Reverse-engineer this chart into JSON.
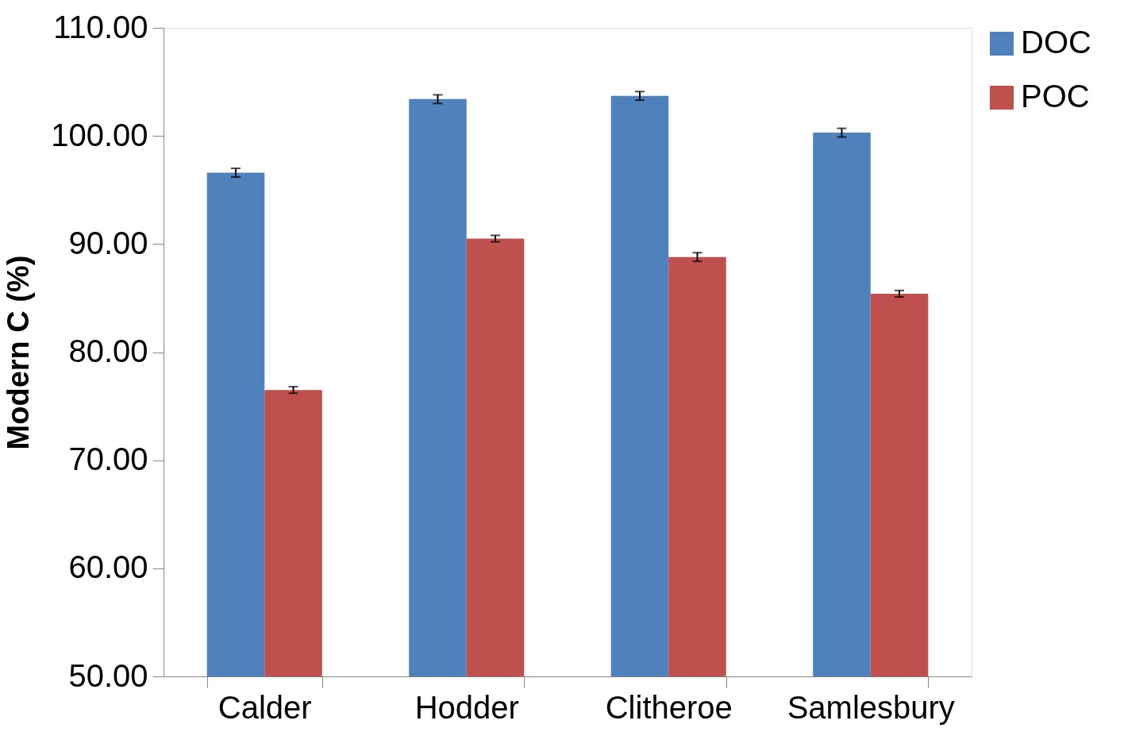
{
  "chart_data": {
    "type": "bar",
    "ylabel": "Modern C (%)",
    "categories": [
      "Calder",
      "Hodder",
      "Clitheroe",
      "Samlesbury"
    ],
    "series": [
      {
        "name": "DOC",
        "color": "#4f81bd",
        "values": [
          96.6,
          103.4,
          103.7,
          100.3
        ],
        "errors": [
          0.4,
          0.4,
          0.4,
          0.4
        ]
      },
      {
        "name": "POC",
        "color": "#c0504d",
        "values": [
          76.5,
          90.5,
          88.8,
          85.4
        ],
        "errors": [
          0.3,
          0.3,
          0.4,
          0.3
        ]
      }
    ],
    "ylim": [
      50,
      110
    ],
    "yticks": [
      {
        "value": 50,
        "label": "50.00"
      },
      {
        "value": 60,
        "label": "60.00"
      },
      {
        "value": 70,
        "label": "70.00"
      },
      {
        "value": 80,
        "label": "80.00"
      },
      {
        "value": 90,
        "label": "90.00"
      },
      {
        "value": 100,
        "label": "100.00"
      },
      {
        "value": 110,
        "label": "110.00"
      }
    ],
    "grid": false,
    "legend": "right"
  }
}
